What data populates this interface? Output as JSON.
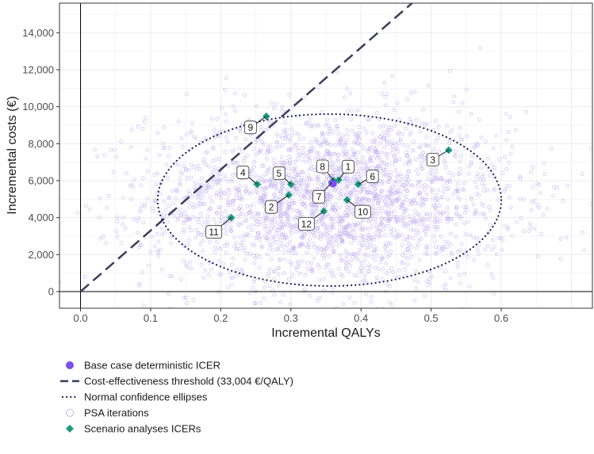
{
  "chart_data": {
    "type": "scatter",
    "title": "",
    "xlabel": "Incremental QALYs",
    "ylabel": "Incremental costs (€)",
    "xlim": [
      -0.03,
      0.73
    ],
    "ylim": [
      -900,
      15600
    ],
    "x_ticks": [
      0.0,
      0.1,
      0.2,
      0.3,
      0.4,
      0.5,
      0.6
    ],
    "x_tick_labels": [
      "0.0",
      "0.1",
      "0.2",
      "0.3",
      "0.4",
      "0.5",
      "0.6"
    ],
    "y_ticks": [
      0,
      2000,
      4000,
      6000,
      8000,
      10000,
      12000,
      14000
    ],
    "y_tick_labels": [
      "0",
      "2,000",
      "4,000",
      "6,000",
      "8,000",
      "10,000",
      "12,000",
      "14,000"
    ],
    "grid": true,
    "threshold": {
      "slope": 33004,
      "label": "Cost-effectiveness threshold (33,004 €/QALY)",
      "color": "#3d3d5c"
    },
    "base_case": {
      "x": 0.36,
      "y": 5850,
      "label": "Base case deterministic ICER",
      "color": "#7b4ff0"
    },
    "ellipse": {
      "center_x": 0.355,
      "center_y": 4950,
      "radius_x": 0.245,
      "radius_y": 4650,
      "label": "Normal confidence ellipses",
      "color": "#1f1f5c"
    },
    "psa": {
      "label": "PSA iterations",
      "count": 2600,
      "mean_x": 0.355,
      "mean_y": 4950,
      "sd_x": 0.13,
      "sd_y": 2400,
      "color": "#b7a6f0"
    },
    "scenarios": {
      "label": "Scenario analyses ICERs",
      "color": "#1a9a7e",
      "points": [
        {
          "id": "1",
          "x": 0.368,
          "y": 6030
        },
        {
          "id": "2",
          "x": 0.297,
          "y": 5220
        },
        {
          "id": "3",
          "x": 0.525,
          "y": 7650
        },
        {
          "id": "4",
          "x": 0.252,
          "y": 5800
        },
        {
          "id": "5",
          "x": 0.3,
          "y": 5800
        },
        {
          "id": "6",
          "x": 0.396,
          "y": 5800
        },
        {
          "id": "7",
          "x": 0.358,
          "y": 5900
        },
        {
          "id": "8",
          "x": 0.361,
          "y": 6000
        },
        {
          "id": "9",
          "x": 0.265,
          "y": 9480
        },
        {
          "id": "10",
          "x": 0.38,
          "y": 4960
        },
        {
          "id": "11",
          "x": 0.215,
          "y": 4000
        },
        {
          "id": "12",
          "x": 0.347,
          "y": 4350
        }
      ]
    },
    "legend": [
      {
        "key": "base",
        "label": "Base case deterministic ICER"
      },
      {
        "key": "threshold",
        "label": "Cost-effectiveness threshold (33,004 €/QALY)"
      },
      {
        "key": "ellipse",
        "label": "Normal confidence ellipses"
      },
      {
        "key": "psa",
        "label": "PSA iterations"
      },
      {
        "key": "scenario",
        "label": "Scenario analyses ICERs"
      }
    ]
  }
}
